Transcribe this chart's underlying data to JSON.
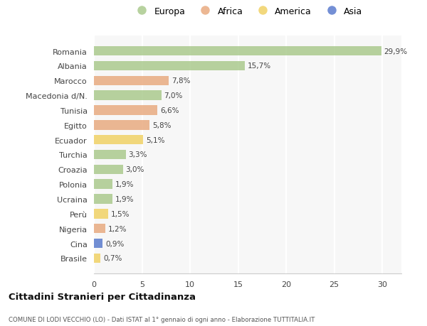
{
  "countries": [
    "Romania",
    "Albania",
    "Marocco",
    "Macedonia d/N.",
    "Tunisia",
    "Egitto",
    "Ecuador",
    "Turchia",
    "Croazia",
    "Polonia",
    "Ucraina",
    "Perù",
    "Nigeria",
    "Cina",
    "Brasile"
  ],
  "values": [
    29.9,
    15.7,
    7.8,
    7.0,
    6.6,
    5.8,
    5.1,
    3.3,
    3.0,
    1.9,
    1.9,
    1.5,
    1.2,
    0.9,
    0.7
  ],
  "labels": [
    "29,9%",
    "15,7%",
    "7,8%",
    "7,0%",
    "6,6%",
    "5,8%",
    "5,1%",
    "3,3%",
    "3,0%",
    "1,9%",
    "1,9%",
    "1,5%",
    "1,2%",
    "0,9%",
    "0,7%"
  ],
  "categories": [
    "Europa",
    "Africa",
    "America",
    "Asia"
  ],
  "continent": [
    "Europa",
    "Europa",
    "Africa",
    "Europa",
    "Africa",
    "Africa",
    "America",
    "Europa",
    "Europa",
    "Europa",
    "Europa",
    "America",
    "Africa",
    "Asia",
    "America"
  ],
  "colors": {
    "Europa": "#a8c88a",
    "Africa": "#e8a87c",
    "America": "#f0d060",
    "Asia": "#5577cc"
  },
  "title": "Cittadini Stranieri per Cittadinanza",
  "subtitle": "COMUNE DI LODI VECCHIO (LO) - Dati ISTAT al 1° gennaio di ogni anno - Elaborazione TUTTITALIA.IT",
  "xlim": [
    0,
    32
  ],
  "xticks": [
    0,
    5,
    10,
    15,
    20,
    25,
    30
  ],
  "background_color": "#ffffff",
  "plot_bg_color": "#f7f7f7",
  "bar_alpha": 0.82,
  "bar_height": 0.65
}
